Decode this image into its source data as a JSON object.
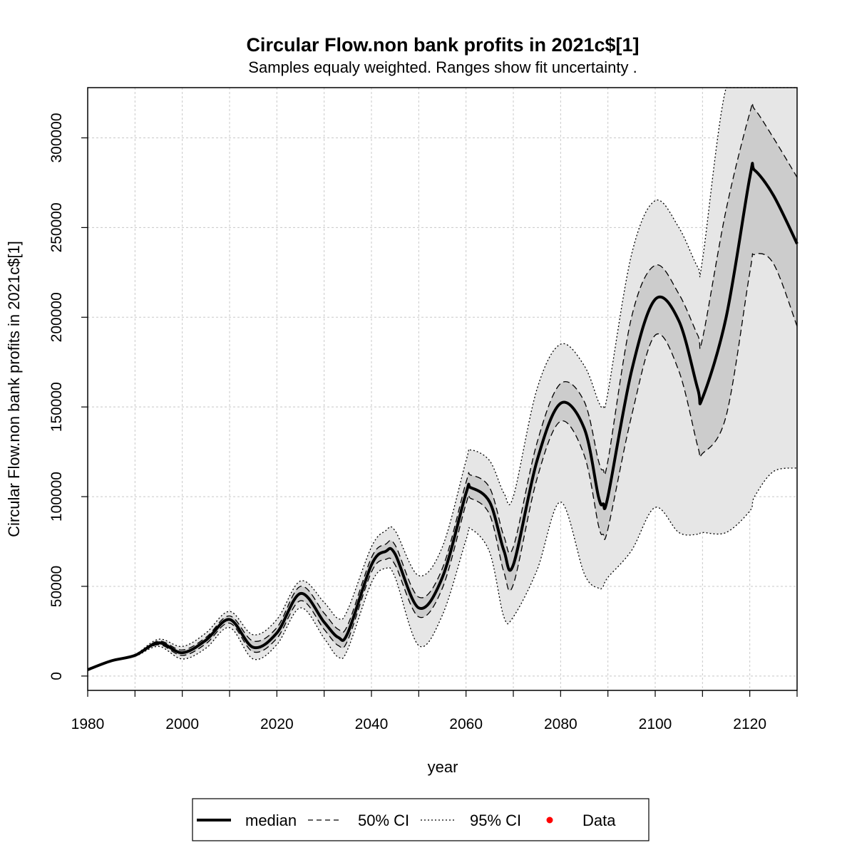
{
  "chart_data": {
    "type": "line",
    "title": "Circular Flow.non bank profits in 2021c$[1]",
    "subtitle": "Samples equaly weighted. Ranges show  fit uncertainty .",
    "xlabel": "year",
    "ylabel": "Circular Flow.non bank profits in 2021c$[1]",
    "xlim": [
      1980,
      2130
    ],
    "ylim": [
      -8000,
      328000
    ],
    "x_ticks": [
      1980,
      2000,
      2020,
      2040,
      2060,
      2080,
      2100,
      2120
    ],
    "y_ticks": [
      0,
      50000,
      100000,
      150000,
      200000,
      250000,
      300000
    ],
    "grid": true,
    "legend_position": "bottom",
    "legend": [
      {
        "label": "median",
        "style": "solid-thick"
      },
      {
        "label": "50% CI",
        "style": "dashed"
      },
      {
        "label": "95% CI",
        "style": "dotted"
      },
      {
        "label": "Data",
        "style": "point",
        "color": "#ff0000"
      }
    ],
    "colors": {
      "ci50_fill": "#cccccc",
      "ci95_fill": "#e6e6e6",
      "line": "#000000",
      "data_point": "#ff0000"
    },
    "x": [
      1980,
      1985,
      1990,
      1995,
      2000,
      2005,
      2010,
      2015,
      2020,
      2025,
      2030,
      2033,
      2035,
      2040,
      2043,
      2045,
      2050,
      2055,
      2060,
      2061,
      2065,
      2068,
      2070,
      2075,
      2080,
      2085,
      2088,
      2089,
      2090,
      2095,
      2100,
      2105,
      2109,
      2110,
      2115,
      2120,
      2121,
      2125,
      2130
    ],
    "series": [
      {
        "name": "median",
        "values": [
          3500,
          8500,
          11500,
          18500,
          13000,
          20000,
          31500,
          16000,
          24000,
          46000,
          30000,
          21500,
          24000,
          62000,
          69500,
          68000,
          38000,
          55000,
          102000,
          105000,
          97000,
          70000,
          62000,
          120000,
          152000,
          138000,
          100000,
          96000,
          100000,
          170000,
          210000,
          198000,
          160000,
          155000,
          200000,
          278000,
          282000,
          268000,
          241000
        ]
      },
      {
        "name": "50% CI upper",
        "values": [
          3500,
          8500,
          11500,
          19500,
          14500,
          21500,
          33500,
          19500,
          27000,
          50000,
          35000,
          26000,
          28500,
          66000,
          73500,
          73000,
          44000,
          60000,
          108000,
          112000,
          105000,
          78000,
          72000,
          130000,
          163000,
          153000,
          120000,
          115000,
          120000,
          200000,
          229000,
          213000,
          190000,
          188000,
          260000,
          314000,
          316000,
          300000,
          278000
        ]
      },
      {
        "name": "50% CI lower",
        "values": [
          3500,
          8500,
          11500,
          17500,
          11500,
          18000,
          29500,
          13500,
          21000,
          42000,
          26000,
          17000,
          20000,
          58000,
          65000,
          62000,
          33000,
          49000,
          96000,
          99000,
          90000,
          58000,
          51000,
          110000,
          142000,
          123000,
          84000,
          79000,
          82000,
          145000,
          190000,
          170000,
          128000,
          124000,
          145000,
          225000,
          235000,
          230000,
          195000
        ]
      },
      {
        "name": "95% CI upper",
        "values": [
          3500,
          8500,
          12000,
          20500,
          16500,
          24000,
          36000,
          23000,
          31500,
          53000,
          41000,
          32000,
          37000,
          72000,
          81000,
          81000,
          56000,
          72000,
          120000,
          126000,
          120000,
          102000,
          100000,
          160000,
          185000,
          173000,
          153000,
          150000,
          158000,
          235000,
          265000,
          250000,
          228000,
          232000,
          330000,
          330000,
          330000,
          330000,
          330000
        ]
      },
      {
        "name": "95% CI lower",
        "values": [
          3500,
          8500,
          11000,
          16500,
          9500,
          15500,
          27000,
          9500,
          17500,
          38000,
          21000,
          10500,
          15000,
          52000,
          60000,
          55000,
          17000,
          34000,
          76000,
          82000,
          69000,
          33000,
          33000,
          59000,
          97000,
          57000,
          49000,
          50000,
          55000,
          70000,
          94000,
          80000,
          79000,
          80000,
          80000,
          92000,
          100000,
          114000,
          116000
        ]
      }
    ]
  }
}
